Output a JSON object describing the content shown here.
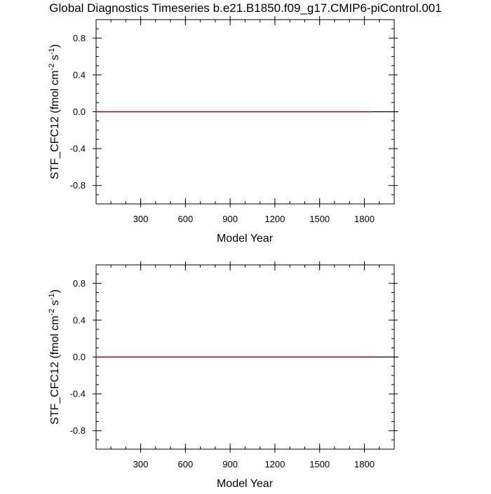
{
  "title": "Global Diagnostics Timeseries b.e21.B1850.f09_g17.CMIP6-piControl.001",
  "colors": {
    "line": "#8b1a1a",
    "zero_line": "#000000",
    "axes": "#000000"
  },
  "chart_data": [
    {
      "type": "line",
      "xlabel": "Model Year",
      "ylabel": "STF_CFC12 (fmol cm-2 s-1)",
      "ylabel_parts": [
        "STF_CFC12 (fmol cm",
        "-2",
        " s",
        "-1",
        ")"
      ],
      "xlim": [
        1,
        2000
      ],
      "ylim": [
        -1,
        1
      ],
      "x_ticks": [
        300,
        600,
        900,
        1200,
        1500,
        1800
      ],
      "x_tick_labels": [
        "300",
        "600",
        "900",
        "1200",
        "1500",
        "1800"
      ],
      "y_ticks": [
        0.8,
        0.4,
        0.0,
        -0.4,
        -0.8
      ],
      "y_tick_labels": [
        "0.8",
        "0.4",
        "0.0",
        "-0.4",
        "-0.8"
      ],
      "grid": false,
      "series": [
        {
          "x": [
            1,
            1850
          ],
          "values": [
            0.0,
            0.0
          ]
        }
      ]
    },
    {
      "type": "line",
      "xlabel": "Model Year",
      "ylabel": "STF_CFC12 (fmol cm-2 s-1)",
      "ylabel_parts": [
        "STF_CFC12 (fmol cm",
        "-2",
        " s",
        "-1",
        ")"
      ],
      "xlim": [
        1,
        2000
      ],
      "ylim": [
        -1,
        1
      ],
      "x_ticks": [
        300,
        600,
        900,
        1200,
        1500,
        1800
      ],
      "x_tick_labels": [
        "300",
        "600",
        "900",
        "1200",
        "1500",
        "1800"
      ],
      "y_ticks": [
        0.8,
        0.4,
        0.0,
        -0.4,
        -0.8
      ],
      "y_tick_labels": [
        "0.8",
        "0.4",
        "0.0",
        "-0.4",
        "-0.8"
      ],
      "grid": false,
      "series": [
        {
          "x": [
            1,
            1850
          ],
          "values": [
            0.0,
            0.0
          ]
        }
      ]
    }
  ]
}
